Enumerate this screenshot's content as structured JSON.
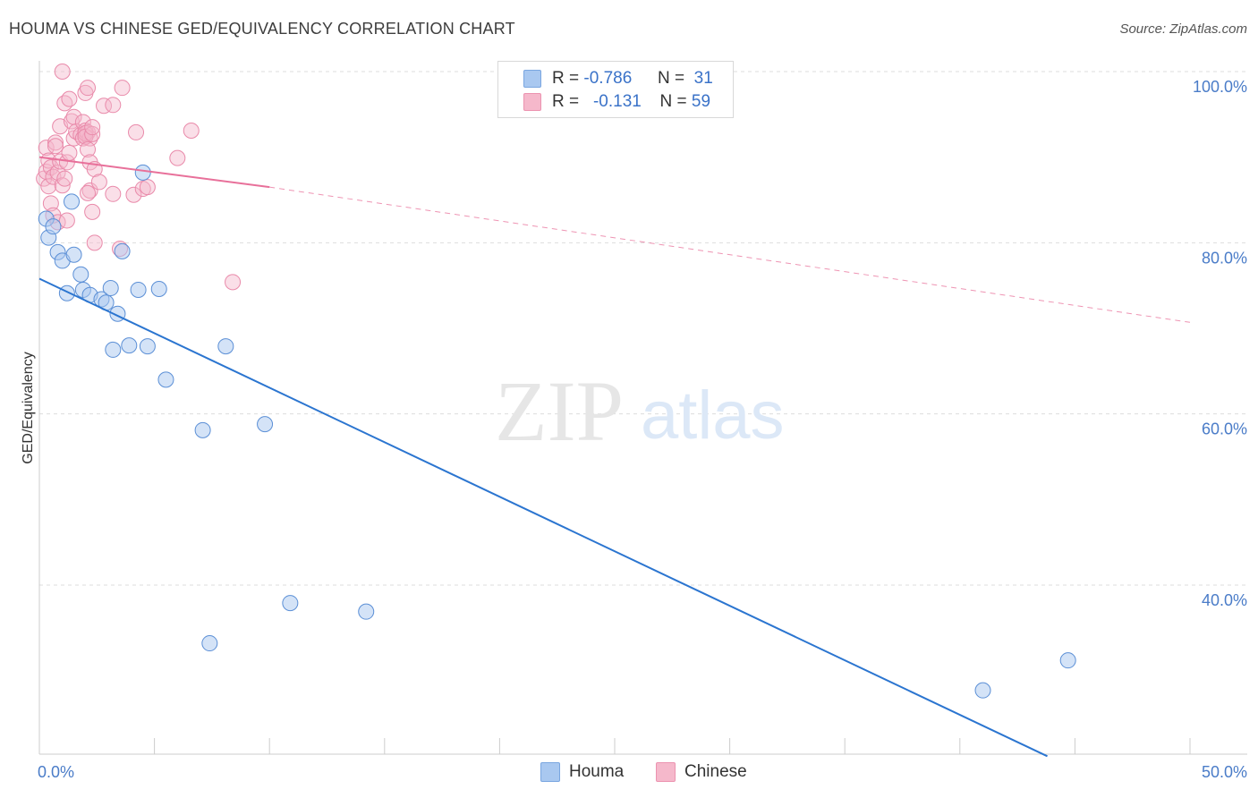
{
  "header": {
    "title": "HOUMA VS CHINESE GED/EQUIVALENCY CORRELATION CHART",
    "source": "Source: ZipAtlas.com"
  },
  "watermark": {
    "zip": "ZIP",
    "atlas": "atlas"
  },
  "legend": {
    "rows": [
      {
        "r_label": "R =",
        "r_value": "-0.786",
        "n_label": "N =",
        "n_value": "31",
        "color": "#a9c8f0"
      },
      {
        "r_label": "R =",
        "r_value": "-0.131",
        "n_label": "N =",
        "n_value": "59",
        "color": "#f5b8cb"
      }
    ]
  },
  "bottom_legend": {
    "items": [
      {
        "label": "Houma",
        "color": "#a9c8f0"
      },
      {
        "label": "Chinese",
        "color": "#f5b8cb"
      }
    ]
  },
  "colors": {
    "houma_fill": "#a9c8f0",
    "houma_stroke": "#5b8fd6",
    "houma_line": "#2b75d0",
    "chinese_fill": "#f5b8cb",
    "chinese_stroke": "#e98aaa",
    "chinese_line": "#e8709a",
    "grid": "#dddddd",
    "tick_text": "#4a7cc8"
  },
  "chart_data": {
    "type": "scatter",
    "title": "HOUMA VS CHINESE GED/EQUIVALENCY CORRELATION CHART",
    "xlabel": "",
    "ylabel": "GED/Equivalency",
    "xlim": [
      0,
      50
    ],
    "ylim": [
      20,
      102
    ],
    "x_tick_labels": [
      "0.0%",
      "50.0%"
    ],
    "y_ticks": [
      40,
      60,
      80,
      100
    ],
    "y_tick_labels": [
      "40.0%",
      "60.0%",
      "80.0%",
      "100.0%"
    ],
    "grid": true,
    "series": [
      {
        "name": "Houma",
        "r": -0.786,
        "n": 31,
        "points": [
          [
            0.3,
            82.8
          ],
          [
            0.4,
            80.6
          ],
          [
            0.6,
            81.9
          ],
          [
            0.8,
            78.9
          ],
          [
            1.0,
            77.9
          ],
          [
            1.2,
            74.1
          ],
          [
            1.4,
            84.8
          ],
          [
            1.5,
            78.6
          ],
          [
            1.8,
            76.3
          ],
          [
            1.9,
            74.5
          ],
          [
            2.2,
            73.9
          ],
          [
            2.7,
            73.4
          ],
          [
            2.9,
            73.0
          ],
          [
            3.1,
            74.7
          ],
          [
            3.2,
            67.5
          ],
          [
            3.4,
            71.7
          ],
          [
            3.6,
            79.0
          ],
          [
            3.9,
            68.0
          ],
          [
            4.3,
            74.5
          ],
          [
            4.5,
            88.2
          ],
          [
            4.7,
            67.9
          ],
          [
            5.2,
            74.6
          ],
          [
            5.5,
            64.0
          ],
          [
            7.1,
            58.1
          ],
          [
            7.4,
            33.2
          ],
          [
            8.1,
            67.9
          ],
          [
            9.8,
            58.8
          ],
          [
            10.9,
            37.9
          ],
          [
            14.2,
            36.9
          ],
          [
            41.0,
            27.7
          ],
          [
            44.7,
            31.2
          ]
        ],
        "trend": {
          "x0": 0,
          "y0": 75.8,
          "x1": 43.8,
          "y1": 20.0,
          "style": "solid"
        }
      },
      {
        "name": "Chinese",
        "r": -0.131,
        "n": 59,
        "points": [
          [
            0.2,
            87.5
          ],
          [
            0.3,
            91.1
          ],
          [
            0.3,
            88.3
          ],
          [
            0.4,
            86.6
          ],
          [
            0.4,
            89.6
          ],
          [
            0.5,
            84.6
          ],
          [
            0.5,
            88.8
          ],
          [
            0.6,
            83.2
          ],
          [
            0.6,
            87.7
          ],
          [
            0.7,
            91.7
          ],
          [
            0.7,
            91.3
          ],
          [
            0.8,
            88.2
          ],
          [
            0.8,
            82.4
          ],
          [
            0.9,
            93.6
          ],
          [
            0.9,
            89.5
          ],
          [
            1.0,
            100.0
          ],
          [
            1.0,
            86.7
          ],
          [
            1.1,
            96.3
          ],
          [
            1.1,
            87.5
          ],
          [
            1.2,
            82.6
          ],
          [
            1.2,
            89.4
          ],
          [
            1.3,
            90.5
          ],
          [
            1.3,
            96.8
          ],
          [
            1.4,
            94.2
          ],
          [
            1.5,
            94.7
          ],
          [
            1.5,
            92.2
          ],
          [
            1.6,
            93.0
          ],
          [
            1.8,
            92.6
          ],
          [
            1.9,
            94.1
          ],
          [
            1.9,
            92.2
          ],
          [
            2.0,
            97.5
          ],
          [
            2.0,
            93.1
          ],
          [
            2.1,
            92.9
          ],
          [
            2.2,
            92.2
          ],
          [
            2.2,
            86.1
          ],
          [
            2.1,
            85.8
          ],
          [
            2.0,
            92.8
          ],
          [
            2.0,
            92.4
          ],
          [
            2.1,
            90.9
          ],
          [
            2.1,
            98.1
          ],
          [
            2.2,
            89.4
          ],
          [
            2.3,
            92.7
          ],
          [
            2.3,
            93.5
          ],
          [
            2.3,
            83.6
          ],
          [
            2.4,
            80.0
          ],
          [
            2.4,
            88.6
          ],
          [
            2.6,
            87.1
          ],
          [
            2.8,
            96.0
          ],
          [
            3.2,
            96.1
          ],
          [
            3.2,
            85.7
          ],
          [
            3.5,
            79.3
          ],
          [
            3.6,
            98.1
          ],
          [
            4.1,
            85.6
          ],
          [
            4.2,
            92.9
          ],
          [
            4.5,
            86.3
          ],
          [
            4.7,
            86.5
          ],
          [
            6.0,
            89.9
          ],
          [
            6.6,
            93.1
          ],
          [
            8.4,
            75.4
          ]
        ],
        "trend_solid": {
          "x0": 0,
          "y0": 90.0,
          "x1": 10.0,
          "y1": 86.5
        },
        "trend_dashed": {
          "x0": 10.0,
          "y0": 86.5,
          "x1": 50.0,
          "y1": 70.7
        }
      }
    ]
  }
}
